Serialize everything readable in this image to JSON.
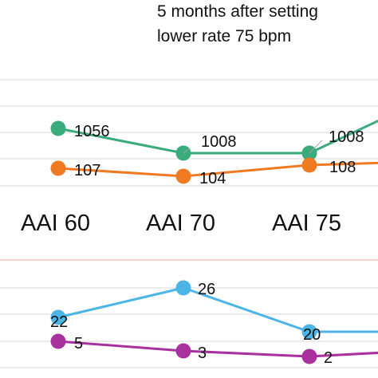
{
  "annotation": {
    "line1": "5 months after setting",
    "line2": "lower rate 75 bpm"
  },
  "colors": {
    "green": "#3aab7b",
    "orange": "#f07a22",
    "blue": "#4db4e6",
    "purple": "#a8319e",
    "grid": "#d9d9d9",
    "separator": "#f2c9b4"
  },
  "chart_data": [
    {
      "type": "line",
      "categories": [
        "AAI 60",
        "AAI 70",
        "AAI 75",
        ""
      ],
      "series": [
        {
          "key": "green",
          "values": [
            1056,
            1008,
            1008,
            1150
          ]
        },
        {
          "key": "orange",
          "values": [
            107,
            104,
            108,
            109
          ]
        }
      ],
      "data_labels": [
        {
          "series": 0,
          "index": 0,
          "text": "1056"
        },
        {
          "series": 0,
          "index": 1,
          "text": "1008"
        },
        {
          "series": 0,
          "index": 2,
          "text": "1008"
        },
        {
          "series": 1,
          "index": 0,
          "text": "107"
        },
        {
          "series": 1,
          "index": 1,
          "text": "104"
        },
        {
          "series": 1,
          "index": 2,
          "text": "108"
        }
      ]
    },
    {
      "type": "line",
      "categories": [
        "AAI 60",
        "AAI 70",
        "AAI 75",
        ""
      ],
      "series": [
        {
          "key": "blue",
          "values": [
            22,
            26,
            20,
            20
          ]
        },
        {
          "key": "purple",
          "values": [
            5,
            3,
            2,
            3
          ]
        }
      ],
      "data_labels": [
        {
          "series": 0,
          "index": 0,
          "text": "22"
        },
        {
          "series": 0,
          "index": 1,
          "text": "26"
        },
        {
          "series": 0,
          "index": 2,
          "text": "20"
        },
        {
          "series": 1,
          "index": 0,
          "text": "5"
        },
        {
          "series": 1,
          "index": 1,
          "text": "3"
        },
        {
          "series": 1,
          "index": 2,
          "text": "2"
        }
      ]
    }
  ]
}
